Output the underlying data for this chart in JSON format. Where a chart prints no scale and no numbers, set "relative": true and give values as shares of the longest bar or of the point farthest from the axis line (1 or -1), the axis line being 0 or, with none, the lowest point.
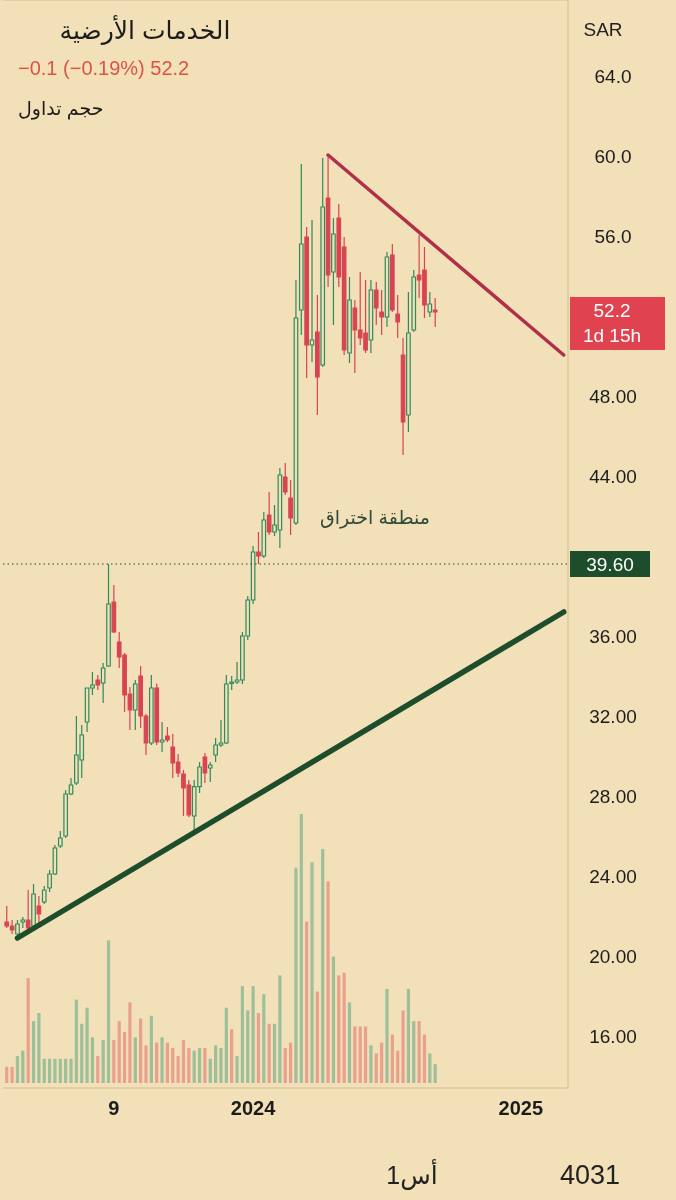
{
  "chart_data": [
    {
      "type": "candlestick",
      "title": "الخدمات الأرضية",
      "subtitle": "−0.1 (−0.19%)  52.2",
      "annotations": [
        "حجم تداول",
        "منطقة اختراق",
        "SAR",
        "52.2",
        "1d 15h",
        "1أس",
        "4031"
      ],
      "categories": [
        null,
        null,
        null,
        null,
        null,
        null,
        null,
        null,
        null,
        null,
        null,
        null,
        null,
        null,
        null,
        null,
        null,
        null,
        null,
        null,
        "9",
        null,
        null,
        null,
        null,
        null,
        null,
        null,
        null,
        null,
        null,
        null,
        null,
        null,
        null,
        null,
        null,
        null,
        null,
        null,
        null,
        null,
        null,
        null,
        null,
        null,
        "2024",
        null,
        null,
        null,
        null,
        null,
        null,
        null,
        null,
        null,
        null,
        null,
        null,
        null,
        null,
        null,
        null,
        null,
        null,
        null,
        null,
        null,
        null,
        null,
        null,
        null,
        null,
        null,
        null,
        null,
        null,
        null,
        null,
        null,
        null,
        null,
        null,
        null,
        null,
        null,
        null,
        null,
        null,
        null,
        null,
        null,
        null,
        null,
        null,
        null,
        "2025",
        null,
        null,
        null,
        null,
        null,
        null,
        null,
        null
      ],
      "ohlc": [
        [
          21.7,
          22.5,
          21.4,
          21.5
        ],
        [
          21.5,
          21.8,
          21.1,
          21.3
        ],
        [
          21.1,
          21.8,
          21.0,
          21.6
        ],
        [
          21.7,
          21.95,
          21.4,
          21.8
        ],
        [
          21.8,
          23.3,
          21.3,
          21.4
        ],
        [
          21.5,
          23.6,
          21.4,
          23.1
        ],
        [
          22.5,
          23.0,
          21.6,
          22.1
        ],
        [
          22.7,
          23.5,
          22.6,
          23.3
        ],
        [
          23.4,
          24.3,
          23.2,
          24.1
        ],
        [
          24.1,
          25.55,
          24.05,
          25.4
        ],
        [
          25.5,
          26.25,
          25.4,
          25.9
        ],
        [
          26.0,
          28.3,
          25.9,
          28.1
        ],
        [
          28.1,
          28.9,
          28.05,
          28.55
        ],
        [
          28.65,
          32.0,
          28.55,
          30.05
        ],
        [
          29.8,
          31.55,
          28.9,
          31.05
        ],
        [
          31.7,
          33.4,
          31.2,
          33.4
        ],
        [
          33.4,
          34.2,
          33.05,
          33.55
        ],
        [
          33.8,
          34.05,
          33.3,
          33.55
        ],
        [
          33.65,
          34.65,
          32.65,
          34.4
        ],
        [
          34.5,
          39.6,
          34.45,
          37.6
        ],
        [
          37.7,
          38.55,
          36.15,
          36.2
        ],
        [
          35.7,
          36.2,
          34.4,
          34.95
        ],
        [
          35.05,
          35.15,
          32.2,
          33.05
        ],
        [
          33.1,
          33.45,
          31.3,
          32.3
        ],
        [
          32.3,
          33.8,
          31.3,
          33.6
        ],
        [
          34.0,
          34.5,
          31.4,
          32.0
        ],
        [
          32.0,
          32.1,
          30.05,
          30.65
        ],
        [
          30.65,
          34.05,
          30.55,
          33.4
        ],
        [
          33.4,
          33.63,
          30.55,
          30.7
        ],
        [
          30.7,
          31.7,
          30.2,
          30.8
        ],
        [
          31.0,
          31.45,
          30.7,
          30.8
        ],
        [
          30.45,
          31.1,
          28.9,
          29.65
        ],
        [
          29.7,
          30.1,
          28.95,
          29.15
        ],
        [
          29.1,
          29.3,
          27.0,
          28.4
        ],
        [
          28.55,
          28.8,
          26.95,
          27.05
        ],
        [
          27.0,
          28.8,
          26.2,
          28.47
        ],
        [
          28.47,
          29.7,
          28.15,
          29.45
        ],
        [
          29.95,
          30.15,
          28.65,
          29.15
        ],
        [
          29.4,
          29.7,
          28.7,
          29.55
        ],
        [
          30.05,
          30.9,
          29.7,
          30.55
        ],
        [
          30.55,
          31.8,
          30.45,
          30.65
        ],
        [
          30.65,
          34.05,
          30.6,
          33.6
        ],
        [
          33.63,
          34.0,
          33.3,
          33.7
        ],
        [
          33.7,
          34.7,
          33.6,
          33.8
        ],
        [
          33.8,
          36.2,
          33.6,
          36.0
        ],
        [
          36.0,
          38.0,
          35.8,
          37.8
        ],
        [
          37.8,
          40.5,
          37.6,
          40.2
        ],
        [
          40.2,
          41.2,
          39.6,
          40.0
        ],
        [
          40.0,
          42.2,
          39.9,
          41.8
        ],
        [
          42.05,
          43.2,
          41.05,
          41.2
        ],
        [
          41.2,
          42.55,
          41.0,
          41.55
        ],
        [
          41.3,
          44.4,
          40.4,
          44.05
        ],
        [
          43.95,
          44.65,
          43.05,
          43.2
        ],
        [
          42.9,
          43.8,
          41.05,
          41.9
        ],
        [
          41.65,
          53.8,
          41.55,
          51.9
        ],
        [
          52.3,
          59.6,
          51.05,
          55.6
        ],
        [
          55.95,
          56.45,
          48.9,
          50.55
        ],
        [
          50.55,
          56.8,
          49.7,
          50.8
        ],
        [
          51.2,
          53.05,
          47.05,
          48.95
        ],
        [
          49.55,
          59.9,
          49.45,
          57.45
        ],
        [
          57.9,
          60.05,
          53.45,
          54.05
        ],
        [
          54.2,
          56.9,
          51.55,
          56.1
        ],
        [
          56.9,
          57.6,
          53.45,
          53.95
        ],
        [
          55.45,
          55.95,
          50.05,
          50.3
        ],
        [
          50.15,
          53.95,
          49.65,
          52.8
        ],
        [
          52.4,
          52.8,
          49.15,
          51.3
        ],
        [
          51.3,
          54.2,
          50.55,
          50.9
        ],
        [
          51.15,
          53.8,
          50.15,
          50.3
        ],
        [
          50.8,
          53.8,
          50.15,
          53.3
        ],
        [
          53.3,
          53.7,
          51.55,
          52.4
        ],
        [
          52.2,
          53.3,
          51.05,
          51.95
        ],
        [
          51.95,
          55.2,
          51.45,
          54.95
        ],
        [
          55.05,
          55.6,
          52.2,
          52.3
        ],
        [
          52.1,
          53.05,
          50.9,
          51.7
        ],
        [
          50.05,
          50.9,
          45.05,
          46.7
        ],
        [
          47.05,
          53.2,
          46.2,
          51.15
        ],
        [
          51.3,
          54.3,
          51.2,
          53.95
        ],
        [
          54.05,
          56.05,
          52.9,
          53.8
        ],
        [
          54.3,
          55.45,
          51.9,
          52.55
        ],
        [
          52.2,
          53.2,
          51.95,
          52.6
        ],
        [
          52.3,
          52.9,
          51.45,
          52.2
        ],
        null,
        null,
        null,
        null,
        null,
        null,
        null,
        null,
        null,
        null,
        null,
        null,
        null,
        null,
        null,
        null,
        null,
        null,
        null,
        null,
        null,
        null,
        null,
        null
      ],
      "colors": [
        "#d94452",
        "#d94452",
        "#2f8a5c",
        "#2f8a5c",
        "#d94452",
        "#2f8a5c",
        "#d94452",
        "#2f8a5c",
        "#2f8a5c",
        "#2f8a5c",
        "#2f8a5c",
        "#2f8a5c",
        "#2f8a5c",
        "#2f8a5c",
        "#2f8a5c",
        "#2f8a5c",
        "#2f8a5c",
        "#d94452",
        "#2f8a5c",
        "#2f8a5c",
        "#d94452",
        "#d94452",
        "#d94452",
        "#d94452",
        "#2f8a5c",
        "#d94452",
        "#d94452",
        "#2f8a5c",
        "#d94452",
        "#2f8a5c",
        "#d94452",
        "#d94452",
        "#d94452",
        "#d94452",
        "#d94452",
        "#2f8a5c",
        "#2f8a5c",
        "#d94452",
        "#2f8a5c",
        "#2f8a5c",
        "#2f8a5c",
        "#2f8a5c",
        "#2f8a5c",
        "#2f8a5c",
        "#2f8a5c",
        "#2f8a5c",
        "#2f8a5c",
        "#d94452",
        "#2f8a5c",
        "#d94452",
        "#2f8a5c",
        "#2f8a5c",
        "#d94452",
        "#d94452",
        "#2f8a5c",
        "#2f8a5c",
        "#d94452",
        "#2f8a5c",
        "#d94452",
        "#2f8a5c",
        "#d94452",
        "#2f8a5c",
        "#d94452",
        "#d94452",
        "#2f8a5c",
        "#d94452",
        "#d94452",
        "#d94452",
        "#2f8a5c",
        "#d94452",
        "#d94452",
        "#2f8a5c",
        "#d94452",
        "#d94452",
        "#d94452",
        "#2f8a5c",
        "#2f8a5c",
        "#d94452",
        "#d94452",
        "#2f8a5c",
        "#d94452",
        null,
        null,
        null,
        null,
        null,
        null,
        null,
        null,
        null,
        null,
        null,
        null,
        null,
        null,
        null,
        null,
        null,
        null,
        null,
        null,
        null,
        null,
        null,
        null
      ],
      "series": [
        {
          "type": "line",
          "color": "#b0304a",
          "values": [
            null,
            null,
            null,
            null,
            null,
            null,
            null,
            null,
            null,
            null,
            null,
            null,
            null,
            null,
            null,
            null,
            null,
            null,
            null,
            null,
            null,
            null,
            null,
            null,
            null,
            null,
            null,
            null,
            null,
            null,
            null,
            null,
            null,
            null,
            null,
            null,
            null,
            null,
            null,
            null,
            null,
            null,
            null,
            null,
            null,
            null,
            null,
            null,
            null,
            null,
            null,
            null,
            null,
            null,
            null,
            null,
            null,
            null,
            null,
            null,
            60.05,
            null,
            null,
            null,
            null,
            null,
            null,
            null,
            null,
            null,
            null,
            null,
            null,
            null,
            null,
            null,
            null,
            null,
            null,
            null,
            null,
            null,
            null,
            null,
            null,
            null,
            null,
            null,
            null,
            null,
            null,
            null,
            null,
            null,
            null,
            null,
            null,
            null,
            null,
            null,
            null,
            null,
            null,
            null,
            50.05
          ]
        },
        {
          "type": "line",
          "color": "#1e4d2b",
          "values": [
            null,
            null,
            20.9,
            null,
            null,
            null,
            null,
            null,
            null,
            null,
            null,
            null,
            null,
            null,
            null,
            null,
            null,
            null,
            null,
            null,
            null,
            null,
            null,
            null,
            null,
            null,
            null,
            null,
            null,
            null,
            null,
            null,
            null,
            null,
            null,
            null,
            null,
            null,
            null,
            null,
            null,
            null,
            null,
            null,
            null,
            null,
            null,
            null,
            null,
            null,
            null,
            null,
            null,
            null,
            null,
            null,
            null,
            null,
            null,
            null,
            null,
            null,
            null,
            null,
            null,
            null,
            null,
            null,
            null,
            null,
            null,
            null,
            null,
            null,
            null,
            null,
            null,
            null,
            null,
            null,
            null,
            null,
            null,
            null,
            null,
            null,
            null,
            null,
            null,
            null,
            null,
            null,
            null,
            null,
            null,
            null,
            null,
            null,
            null,
            null,
            null,
            null,
            null,
            null,
            37.2
          ]
        }
      ],
      "ref_lines": [
        {
          "axis": "y",
          "value": 39.6,
          "label": "39.60",
          "color": "#1e4d2b",
          "line_style": "dotted"
        }
      ],
      "ylim": [
        13.4,
        67.8
      ],
      "yticks": [
        {
          "value": 16,
          "label": "16.00"
        },
        {
          "value": 20,
          "label": "20.00"
        },
        {
          "value": 24,
          "label": "24.00"
        },
        {
          "value": 28,
          "label": "28.00"
        },
        {
          "value": 32,
          "label": "32.00"
        },
        {
          "value": 36,
          "label": "36.00"
        },
        {
          "value": 44,
          "label": "44.00"
        },
        {
          "value": 48,
          "label": "48.00"
        },
        {
          "value": 56,
          "label": "56.0"
        },
        {
          "value": 60,
          "label": "60.0"
        },
        {
          "value": 64,
          "label": "64.0"
        }
      ]
    },
    {
      "type": "bar",
      "relative": true,
      "categories": [
        null,
        null,
        null,
        null,
        null,
        null,
        null,
        null,
        null,
        null,
        null,
        null,
        null,
        null,
        null,
        null,
        null,
        null,
        null,
        null,
        null,
        null,
        null,
        null,
        null,
        null,
        null,
        null,
        null,
        null,
        null,
        null,
        null,
        null,
        null,
        null,
        null,
        null,
        null,
        null,
        null,
        null,
        null,
        null,
        null,
        null,
        null,
        null,
        null,
        null,
        null,
        null,
        null,
        null,
        null,
        null,
        null,
        null,
        null,
        null,
        null,
        null,
        null,
        null,
        null,
        null,
        null,
        null,
        null,
        null,
        null,
        null,
        null,
        null,
        null,
        null,
        null,
        null,
        null,
        null,
        null,
        null,
        null,
        null,
        null,
        null,
        null,
        null,
        null,
        null,
        null,
        null,
        null,
        null,
        null,
        null,
        null,
        null,
        null,
        null,
        null,
        null,
        null,
        null,
        null
      ],
      "values": [
        0.06,
        0.06,
        0.1,
        0.12,
        0.39,
        0.23,
        0.26,
        0.09,
        0.09,
        0.09,
        0.09,
        0.09,
        0.09,
        0.31,
        0.22,
        0.28,
        0.17,
        0.1,
        0.16,
        0.53,
        0.16,
        0.23,
        0.19,
        0.3,
        0.17,
        0.24,
        0.14,
        0.25,
        0.15,
        0.17,
        0.15,
        0.13,
        0.1,
        0.16,
        0.13,
        0.12,
        0.13,
        0.13,
        0.09,
        0.14,
        0.13,
        0.28,
        0.2,
        0.1,
        0.36,
        0.27,
        0.36,
        0.26,
        0.33,
        0.22,
        0.22,
        0.4,
        0.13,
        0.15,
        0.8,
        1,
        0.6,
        0.82,
        0.34,
        0.87,
        0.75,
        0.47,
        0.4,
        0.41,
        0.3,
        0.21,
        0.21,
        0.21,
        0.14,
        0.11,
        0.15,
        0.35,
        0.18,
        0.12,
        0.27,
        0.35,
        0.23,
        0.23,
        0.18,
        0.11,
        0.07,
        null,
        null,
        null,
        null,
        null,
        null,
        null,
        null,
        null,
        null,
        null,
        null,
        null,
        null,
        null,
        null,
        null,
        null,
        null,
        null,
        null,
        null,
        null,
        null
      ],
      "colors": [
        "#e9a08c",
        "#e9a08c",
        "#9dbf9a",
        "#9dbf9a",
        "#e9a08c",
        "#9dbf9a",
        "#9dbf9a",
        "#9dbf9a",
        "#9dbf9a",
        "#9dbf9a",
        "#9dbf9a",
        "#9dbf9a",
        "#9dbf9a",
        "#9dbf9a",
        "#9dbf9a",
        "#9dbf9a",
        "#9dbf9a",
        "#e9a08c",
        "#9dbf9a",
        "#9dbf9a",
        "#e9a08c",
        "#e9a08c",
        "#e9a08c",
        "#e9a08c",
        "#9dbf9a",
        "#e9a08c",
        "#e9a08c",
        "#9dbf9a",
        "#e9a08c",
        "#9dbf9a",
        "#e9a08c",
        "#e9a08c",
        "#e9a08c",
        "#e9a08c",
        "#e9a08c",
        "#9dbf9a",
        "#9dbf9a",
        "#e9a08c",
        "#9dbf9a",
        "#9dbf9a",
        "#9dbf9a",
        "#9dbf9a",
        "#e9a08c",
        "#9dbf9a",
        "#9dbf9a",
        "#9dbf9a",
        "#9dbf9a",
        "#e9a08c",
        "#9dbf9a",
        "#e9a08c",
        "#9dbf9a",
        "#9dbf9a",
        "#e9a08c",
        "#e9a08c",
        "#9dbf9a",
        "#9dbf9a",
        "#e9a08c",
        "#9dbf9a",
        "#e9a08c",
        "#9dbf9a",
        "#e9a08c",
        "#9dbf9a",
        "#e9a08c",
        "#e9a08c",
        "#9dbf9a",
        "#e9a08c",
        "#e9a08c",
        "#e9a08c",
        "#9dbf9a",
        "#e9a08c",
        "#e9a08c",
        "#9dbf9a",
        "#e9a08c",
        "#e9a08c",
        "#e9a08c",
        "#9dbf9a",
        "#9dbf9a",
        "#e9a08c",
        "#e9a08c",
        "#9dbf9a",
        "#9dbf9a",
        null,
        null,
        null,
        null,
        null,
        null,
        null,
        null,
        null,
        null,
        null,
        null,
        null,
        null,
        null,
        null,
        null,
        null,
        null,
        null,
        null,
        null,
        null,
        null
      ]
    }
  ]
}
